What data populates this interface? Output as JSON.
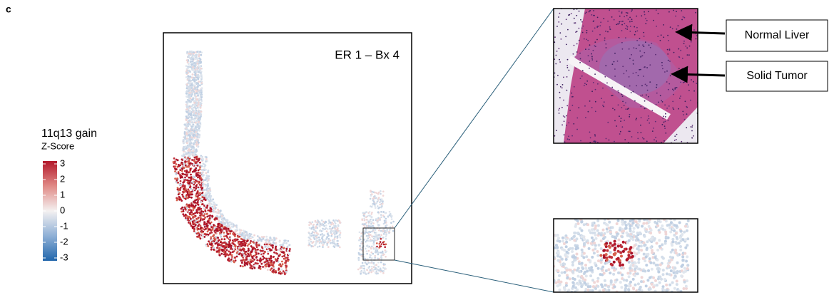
{
  "panel_label": "c",
  "legend": {
    "title": "11q13 gain",
    "subtitle": "Z-Score",
    "ticks": [
      3,
      2,
      1,
      0,
      -1,
      -2,
      -3
    ]
  },
  "plot": {
    "label": "ER 1 – Bx 4"
  },
  "annotations": [
    "Normal Liver",
    "Solid Tumor"
  ]
}
